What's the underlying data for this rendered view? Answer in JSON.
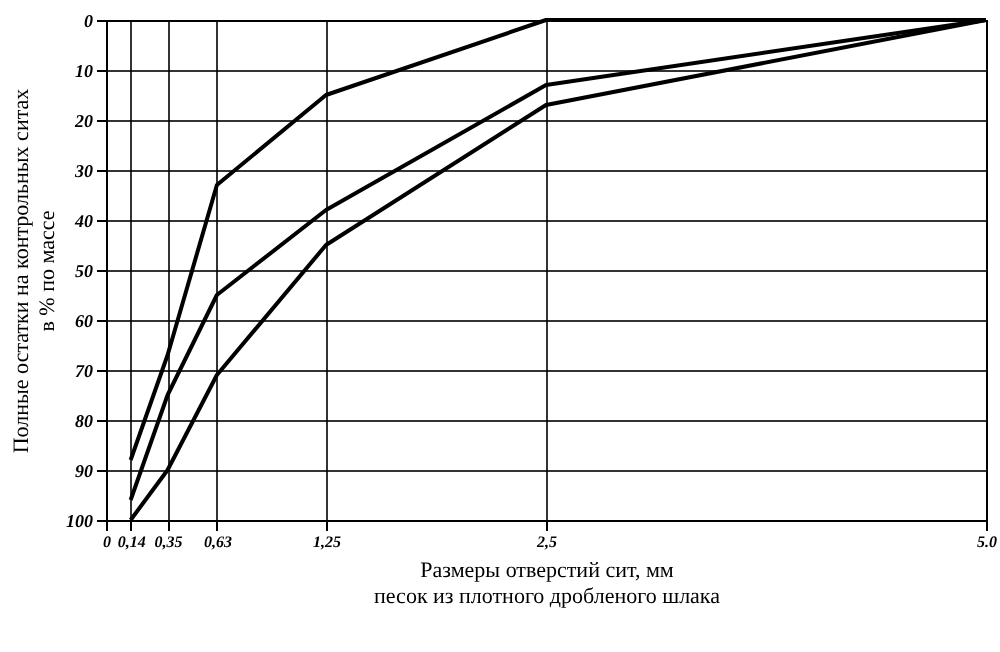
{
  "chart_data": {
    "type": "line",
    "xlabel": "Размеры отверстий сит, мм\nпесок из плотного дробленого шлака",
    "ylabel": "Полные остатки на контрольных ситах\nв % по массе",
    "x": [
      0.14,
      0.35,
      0.63,
      1.25,
      2.5,
      5.0
    ],
    "series": [
      {
        "color": "#000000",
        "values": [
          88,
          67,
          33,
          15,
          0,
          0
        ]
      },
      {
        "color": "#000000",
        "values": [
          96,
          75,
          55,
          38,
          13,
          0
        ]
      },
      {
        "color": "#000000",
        "values": [
          100,
          90,
          71,
          45,
          17,
          0
        ]
      }
    ],
    "xlim": [
      0,
      5.0
    ],
    "xticks": [
      0,
      {
        "value": 0.14,
        "label": "0,14"
      },
      {
        "value": 0.35,
        "label": "0,35"
      },
      {
        "value": 0.63,
        "label": "0,63"
      },
      {
        "value": 1.25,
        "label": "1,25"
      },
      {
        "value": 2.5,
        "label": "2,5"
      },
      {
        "value": 5.0,
        "label": "5.0"
      }
    ],
    "ylim": [
      100,
      0
    ],
    "yticks": [
      0,
      10,
      20,
      30,
      40,
      50,
      60,
      70,
      80,
      90,
      100
    ],
    "grid": true,
    "line_style": "solid"
  }
}
